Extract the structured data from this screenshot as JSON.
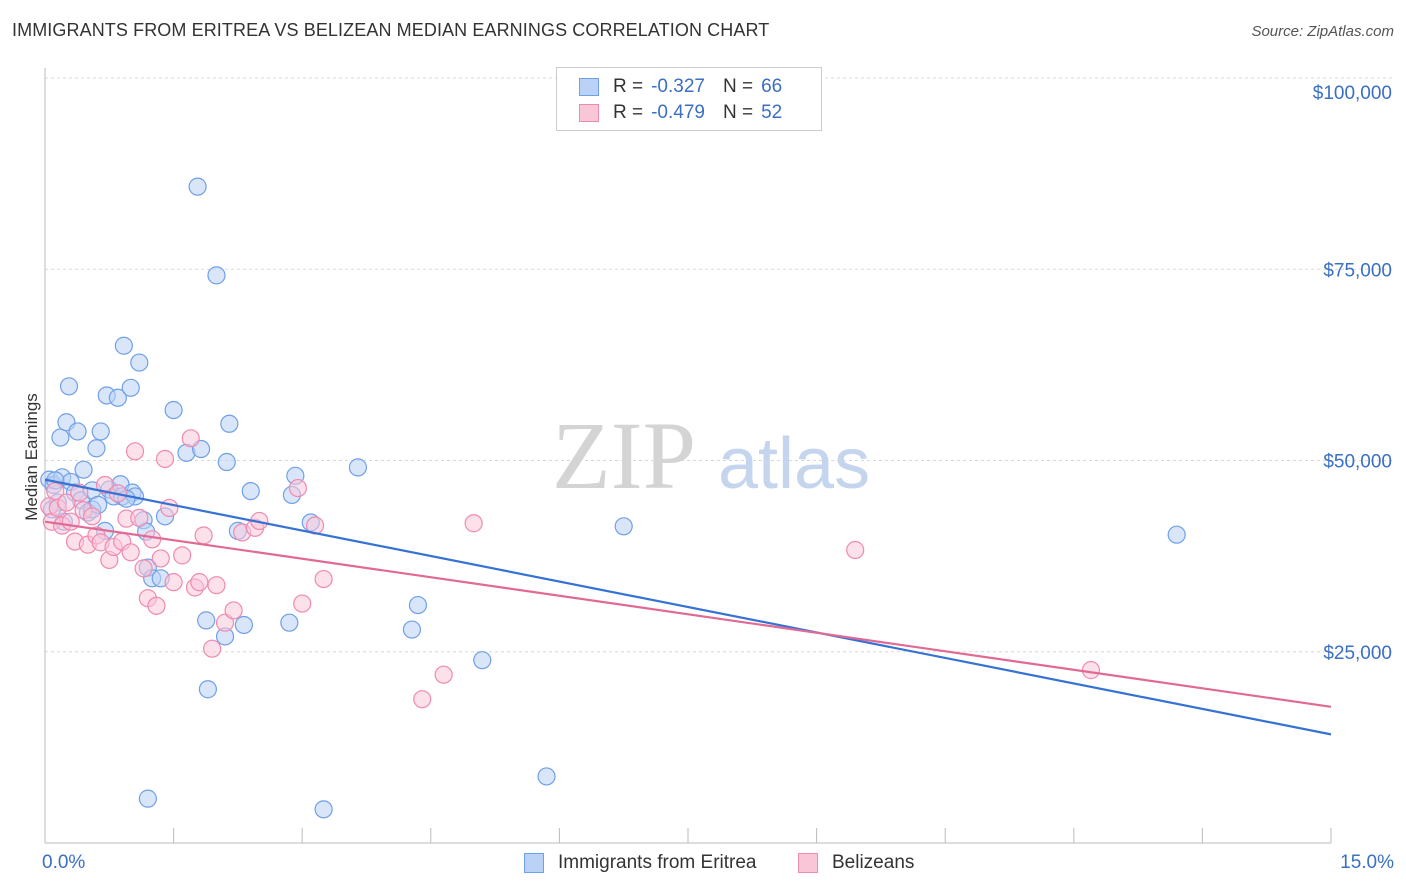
{
  "header": {
    "title": "IMMIGRANTS FROM ERITREA VS BELIZEAN MEDIAN EARNINGS CORRELATION CHART",
    "source": "Source: ZipAtlas.com"
  },
  "watermark": {
    "zip": "ZIP",
    "atlas": "atlas"
  },
  "legend": {
    "rows": [
      {
        "r_label": "R =",
        "r_value": "-0.327",
        "n_label": "N =",
        "n_value": "66",
        "color": "#6fa0e8",
        "fill": "#b9d2f5"
      },
      {
        "r_label": "R =",
        "r_value": "-0.479",
        "n_label": "N =",
        "n_value": "52",
        "color": "#f08ab0",
        "fill": "#f9c6d8"
      }
    ]
  },
  "bottom_legend": {
    "items": [
      {
        "label": "Immigrants from Eritrea",
        "color": "#6fa0e8",
        "fill": "#b9d2f5"
      },
      {
        "label": "Belizeans",
        "color": "#f08ab0",
        "fill": "#f9c6d8"
      }
    ]
  },
  "axes": {
    "x_min_label": "0.0%",
    "x_max_label": "15.0%",
    "y_ticks": [
      "$100,000",
      "$75,000",
      "$50,000",
      "$25,000"
    ]
  },
  "chart_data": {
    "type": "scatter",
    "title": "IMMIGRANTS FROM ERITREA VS BELIZEAN MEDIAN EARNINGS CORRELATION CHART",
    "xlabel": "",
    "ylabel": "Median Earnings",
    "xlim": [
      0,
      15
    ],
    "ylim": [
      0,
      105000
    ],
    "y_ticks": [
      25000,
      50000,
      75000,
      100000
    ],
    "grid": true,
    "legend_position": "top-center",
    "series": [
      {
        "name": "Immigrants from Eritrea",
        "color": "#6fa0e8",
        "trend": {
          "x": [
            0,
            15
          ],
          "y": [
            47500,
            14200
          ]
        },
        "points": [
          [
            0.05,
            47500
          ],
          [
            0.1,
            46800
          ],
          [
            0.15,
            44500
          ],
          [
            0.18,
            53000
          ],
          [
            0.2,
            47800
          ],
          [
            0.25,
            55000
          ],
          [
            0.28,
            59700
          ],
          [
            0.3,
            47200
          ],
          [
            0.35,
            45800
          ],
          [
            0.38,
            53800
          ],
          [
            0.42,
            44800
          ],
          [
            0.45,
            48800
          ],
          [
            0.5,
            43200
          ],
          [
            0.55,
            43600
          ],
          [
            0.6,
            51600
          ],
          [
            0.65,
            53800
          ],
          [
            0.7,
            40800
          ],
          [
            0.72,
            58500
          ],
          [
            0.75,
            46200
          ],
          [
            0.8,
            45300
          ],
          [
            0.85,
            58200
          ],
          [
            0.88,
            46900
          ],
          [
            0.9,
            45300
          ],
          [
            0.92,
            65000
          ],
          [
            1.0,
            59500
          ],
          [
            1.02,
            45800
          ],
          [
            1.05,
            45300
          ],
          [
            1.1,
            62800
          ],
          [
            1.15,
            42200
          ],
          [
            1.18,
            40700
          ],
          [
            1.2,
            36000
          ],
          [
            1.25,
            34600
          ],
          [
            1.35,
            34600
          ],
          [
            1.5,
            56600
          ],
          [
            1.65,
            51000
          ],
          [
            1.78,
            85800
          ],
          [
            1.82,
            51500
          ],
          [
            1.88,
            29100
          ],
          [
            2.0,
            74200
          ],
          [
            2.1,
            27000
          ],
          [
            2.12,
            49800
          ],
          [
            2.15,
            54800
          ],
          [
            2.25,
            40800
          ],
          [
            2.32,
            28500
          ],
          [
            2.4,
            46000
          ],
          [
            2.85,
            28800
          ],
          [
            2.88,
            45500
          ],
          [
            2.92,
            48000
          ],
          [
            3.1,
            41900
          ],
          [
            3.65,
            49100
          ],
          [
            4.28,
            27900
          ],
          [
            4.35,
            31100
          ],
          [
            5.1,
            23900
          ],
          [
            5.85,
            8700
          ],
          [
            6.75,
            41400
          ],
          [
            13.2,
            40300
          ],
          [
            1.2,
            5800
          ],
          [
            3.25,
            4400
          ],
          [
            1.9,
            20100
          ],
          [
            0.12,
            47400
          ],
          [
            0.08,
            43600
          ],
          [
            0.22,
            42000
          ],
          [
            0.55,
            46100
          ],
          [
            0.95,
            45000
          ],
          [
            1.4,
            42700
          ],
          [
            0.62,
            44200
          ]
        ]
      },
      {
        "name": "Belizeans",
        "color": "#f08ab0",
        "trend": {
          "x": [
            0,
            15
          ],
          "y": [
            42000,
            17800
          ]
        },
        "points": [
          [
            0.05,
            44000
          ],
          [
            0.08,
            42000
          ],
          [
            0.12,
            46000
          ],
          [
            0.15,
            43800
          ],
          [
            0.2,
            41500
          ],
          [
            0.25,
            44500
          ],
          [
            0.3,
            42000
          ],
          [
            0.35,
            39400
          ],
          [
            0.4,
            45800
          ],
          [
            0.45,
            43500
          ],
          [
            0.5,
            39000
          ],
          [
            0.55,
            42700
          ],
          [
            0.6,
            40200
          ],
          [
            0.65,
            39300
          ],
          [
            0.7,
            46800
          ],
          [
            0.75,
            37000
          ],
          [
            0.8,
            38700
          ],
          [
            0.85,
            45700
          ],
          [
            0.9,
            39400
          ],
          [
            0.95,
            42400
          ],
          [
            1.0,
            38000
          ],
          [
            1.05,
            51200
          ],
          [
            1.1,
            42500
          ],
          [
            1.15,
            35900
          ],
          [
            1.2,
            32000
          ],
          [
            1.25,
            39700
          ],
          [
            1.3,
            31000
          ],
          [
            1.35,
            37200
          ],
          [
            1.4,
            50200
          ],
          [
            1.45,
            43800
          ],
          [
            1.5,
            34100
          ],
          [
            1.6,
            37600
          ],
          [
            1.7,
            52900
          ],
          [
            1.75,
            33400
          ],
          [
            1.8,
            34100
          ],
          [
            1.85,
            40200
          ],
          [
            1.95,
            25400
          ],
          [
            2.0,
            33700
          ],
          [
            2.1,
            28800
          ],
          [
            2.2,
            30400
          ],
          [
            2.3,
            40600
          ],
          [
            2.45,
            41200
          ],
          [
            2.5,
            42100
          ],
          [
            2.95,
            46400
          ],
          [
            3.0,
            31300
          ],
          [
            3.15,
            41500
          ],
          [
            3.25,
            34500
          ],
          [
            4.4,
            18800
          ],
          [
            4.65,
            22000
          ],
          [
            5.0,
            41800
          ],
          [
            9.45,
            38300
          ],
          [
            12.2,
            22600
          ]
        ]
      }
    ]
  }
}
